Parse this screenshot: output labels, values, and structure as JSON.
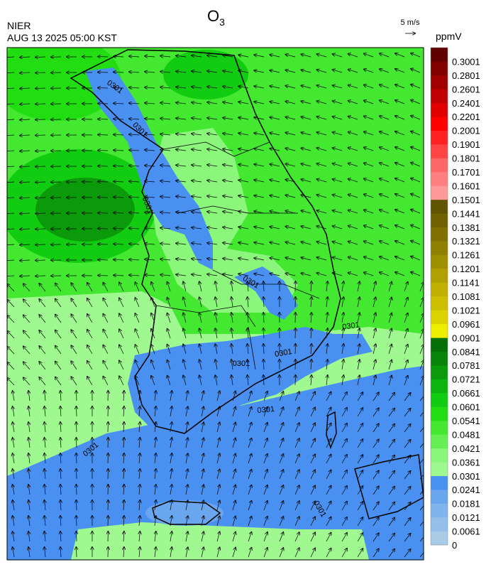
{
  "header": {
    "title": "O",
    "title_subscript": "3",
    "agency": "NIER",
    "timestamp": "AUG 13 2025 05:00 KST",
    "vector_scale": "5 m/s"
  },
  "colorbar": {
    "unit": "ppmV",
    "levels": [
      0,
      0.0061,
      0.0121,
      0.0181,
      0.0241,
      0.0301,
      0.0361,
      0.0421,
      0.0481,
      0.0541,
      0.0601,
      0.0661,
      0.0721,
      0.0781,
      0.0841,
      0.0901,
      0.0961,
      0.1021,
      0.1081,
      0.1141,
      0.1201,
      0.1261,
      0.1321,
      0.1381,
      0.1441,
      0.1501,
      0.1601,
      0.1701,
      0.1801,
      0.1901,
      0.2001,
      0.2201,
      0.2401,
      0.2601,
      0.2801,
      0.3001
    ],
    "colors": [
      "#a8cce8",
      "#93bfe8",
      "#80b4ec",
      "#6aa6ee",
      "#4a90f0",
      "#a0f890",
      "#8cf57c",
      "#66ee55",
      "#44e830",
      "#22dd11",
      "#11cc11",
      "#0db40d",
      "#0a9a0a",
      "#088508",
      "#067006",
      "#eeee00",
      "#dcd400",
      "#ccc000",
      "#c0b000",
      "#b0a000",
      "#a09000",
      "#908000",
      "#807000",
      "#706200",
      "#605400",
      "#ff9a9a",
      "#ff8080",
      "#ff6666",
      "#ff4444",
      "#ff2222",
      "#ff0000",
      "#e00000",
      "#c00000",
      "#a00000",
      "#800000",
      "#600000"
    ]
  },
  "map": {
    "contour_labels": [
      "0301",
      "0301",
      "0301",
      "0301",
      "0301",
      "0301",
      "0301",
      "0301",
      "0301",
      "0301"
    ]
  }
}
